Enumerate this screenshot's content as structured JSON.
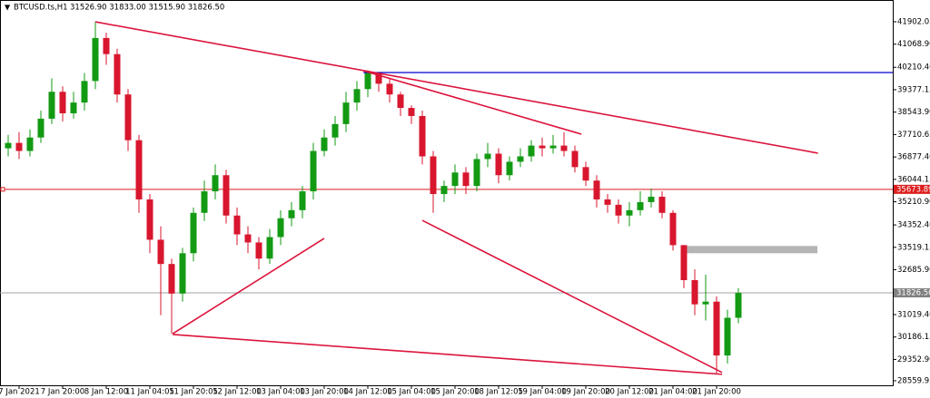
{
  "chart_data": {
    "type": "candlestick",
    "symbol": "BTCUSD.ts,H1",
    "ohlc_text": "31526.90 31833.00 31515.90 31826.50",
    "categories": [
      null,
      "7 Jan 2021",
      null,
      null,
      null,
      "7 Jan 20:00",
      null,
      null,
      null,
      "8 Jan 12:00",
      null,
      null,
      null,
      "11 Jan 04:05",
      null,
      null,
      null,
      "11 Jan 20:05",
      null,
      null,
      null,
      "12 Jan 12:00",
      null,
      null,
      null,
      "13 Jan 04:00",
      null,
      null,
      null,
      "13 Jan 20:00",
      null,
      null,
      null,
      "14 Jan 12:00",
      null,
      null,
      null,
      "15 Jan 04:00",
      null,
      null,
      null,
      "15 Jan 20:00",
      null,
      null,
      null,
      "18 Jan 12:05",
      null,
      null,
      null,
      "19 Jan 04:00",
      null,
      null,
      null,
      "19 Jan 20:00",
      null,
      null,
      null,
      "20 Jan 12:00",
      null,
      null,
      null,
      "21 Jan 04:00",
      null,
      null,
      null,
      "21 Jan 20:00",
      null,
      null
    ],
    "open": [
      37200,
      37400,
      37100,
      37600,
      38300,
      39300,
      38500,
      38900,
      39700,
      41300,
      40700,
      39200,
      37500,
      35300,
      33800,
      32900,
      31800,
      33300,
      34800,
      35600,
      36200,
      34700,
      34000,
      33700,
      33100,
      33900,
      34600,
      34900,
      35600,
      37100,
      37600,
      38100,
      38900,
      39400,
      40000,
      39600,
      39200,
      38700,
      38400,
      36900,
      35500,
      35800,
      36300,
      35800,
      36800,
      37000,
      36200,
      36700,
      36900,
      37300,
      37200,
      37300,
      37100,
      36500,
      36000,
      35300,
      35100,
      34700,
      34900,
      35200,
      35400,
      34800,
      33600,
      32300,
      31400,
      31500,
      29500,
      30900
    ],
    "high": [
      37700,
      37800,
      37900,
      38600,
      39800,
      39500,
      39300,
      40000,
      41900,
      41500,
      40900,
      39400,
      37700,
      35500,
      34300,
      33100,
      33500,
      35000,
      36000,
      36600,
      36400,
      35000,
      34300,
      33900,
      34200,
      34900,
      35200,
      35800,
      37400,
      37900,
      38400,
      39300,
      39700,
      40100,
      40000,
      39800,
      39300,
      38800,
      38600,
      37100,
      36000,
      36600,
      36500,
      37000,
      37400,
      37200,
      36900,
      37200,
      37500,
      37600,
      37700,
      37800,
      37300,
      36700,
      36200,
      35500,
      35300,
      35200,
      35600,
      35700,
      35600,
      34900,
      33600,
      32700,
      32500,
      31700,
      31200,
      32000
    ],
    "low": [
      36900,
      36800,
      36900,
      37400,
      38100,
      38200,
      38300,
      38600,
      39400,
      40300,
      38900,
      37100,
      34800,
      33300,
      31000,
      30300,
      31500,
      33000,
      34500,
      35300,
      34400,
      33600,
      33300,
      32700,
      32900,
      33600,
      34300,
      34600,
      35300,
      36900,
      37300,
      37800,
      38600,
      39100,
      39300,
      38900,
      38400,
      38100,
      36600,
      34800,
      35200,
      35500,
      35500,
      35600,
      36500,
      35900,
      36000,
      36500,
      36700,
      36900,
      37000,
      36900,
      36300,
      35800,
      35000,
      34800,
      34400,
      34300,
      34700,
      35000,
      34600,
      33400,
      32000,
      31000,
      30800,
      28800,
      29200,
      30700
    ],
    "close": [
      37400,
      37100,
      37600,
      38300,
      39300,
      38500,
      38900,
      39700,
      41300,
      40700,
      39200,
      37500,
      35300,
      33800,
      32900,
      31800,
      33300,
      34800,
      35600,
      36200,
      34700,
      34000,
      33700,
      33100,
      33900,
      34600,
      34900,
      35600,
      37100,
      37600,
      38100,
      38900,
      39400,
      40000,
      39600,
      39200,
      38700,
      38400,
      36900,
      35500,
      35800,
      36300,
      35800,
      36800,
      37000,
      36200,
      36700,
      36900,
      37300,
      37200,
      37300,
      37100,
      36500,
      36000,
      35300,
      35100,
      34700,
      34900,
      35200,
      35400,
      34800,
      33600,
      32300,
      31400,
      31500,
      29500,
      30900,
      31826.5
    ],
    "up_color": "#139a13",
    "down_color": "#d8162e",
    "ylim": [
      28391,
      42711
    ],
    "yticks": [
      41902.05,
      {
        "value": 41068.9,
        "label": "41068.90"
      },
      {
        "value": 40210.4,
        "label": "40210.40"
      },
      39377.15,
      {
        "value": 38543.9,
        "label": "38543.90"
      },
      37710.65,
      {
        "value": 36877.4,
        "label": "36877.40"
      },
      36044.15,
      {
        "value": 35210.9,
        "label": "35210.90"
      },
      {
        "value": 34352.4,
        "label": "34352.40"
      },
      33519.15,
      {
        "value": 32685.9,
        "label": "32685.90"
      },
      {
        "value": 31019.4,
        "label": "31019.40"
      },
      30186.15,
      {
        "value": 29352.9,
        "label": "29352.90"
      },
      28559.95
    ],
    "trendline_color": "#dc143c",
    "trendlines": [
      {
        "x1": 8,
        "y1": 41900,
        "x2": 74.3,
        "y2": 37020
      },
      {
        "x1": 32.6,
        "y1": 40080,
        "x2": 52.6,
        "y2": 37725
      },
      {
        "x1": 15.1,
        "y1": 30310,
        "x2": 29,
        "y2": 33850
      },
      {
        "x1": 15.1,
        "y1": 30280,
        "x2": 65.5,
        "y2": 28800
      },
      {
        "x1": 38,
        "y1": 34520,
        "x2": 65.5,
        "y2": 28870
      }
    ],
    "resistance": {
      "value": 40016,
      "from": 32.6,
      "color": "#0000cd"
    },
    "level": {
      "value": 35673.89,
      "label": "35673.89",
      "color": "#dc1e1e"
    },
    "current_price": {
      "value": 31826.5,
      "label": "31826.50",
      "color": "#a0a0a0"
    },
    "zone": {
      "x1": 62.3,
      "x2": 74.25,
      "top": 33570,
      "bottom": 33300,
      "color": "#b4b4b4"
    }
  }
}
